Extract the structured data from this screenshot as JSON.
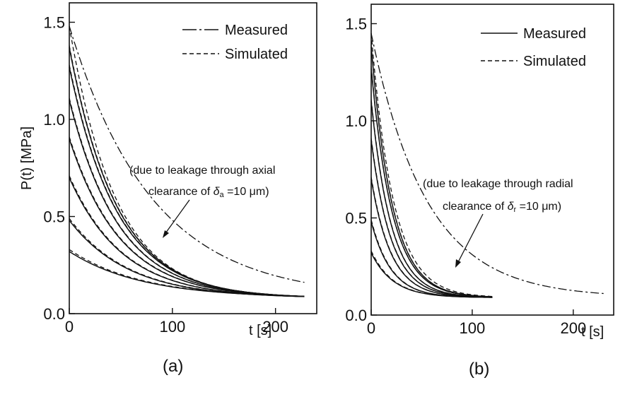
{
  "chart_data": [
    {
      "type": "line",
      "caption": "(a)",
      "xlabel": "t [s]",
      "ylabel": "P(t) [MPa]",
      "xlim": [
        0,
        240
      ],
      "ylim": [
        0,
        1.6
      ],
      "xticks": [
        "0",
        "100",
        "200"
      ],
      "xtick_values": [
        0,
        100,
        200
      ],
      "yticks": [
        "0.0",
        "0.5",
        "1.0",
        "1.5"
      ],
      "ytick_values": [
        0,
        0.5,
        1.0,
        1.5
      ],
      "legend_position": "top-right",
      "legend": [
        {
          "label": "Measured",
          "style": "solid"
        },
        {
          "label": "Simulated",
          "style": "dashed"
        }
      ],
      "annotation": {
        "line1": "(due to leakage through axial",
        "line2_prefix": "clearance of ",
        "symbol": "δ",
        "subscript": "a",
        "line2_suffix": " =10 μm)",
        "arrow_target": [
          90,
          0.43
        ]
      },
      "curve_model": {
        "x_end": 228,
        "floor": 0.08
      },
      "series": [
        {
          "name": "Measured",
          "style": "solid",
          "initial": [
            0.32,
            0.48,
            0.7,
            0.9,
            1.1,
            1.27,
            1.37
          ],
          "tau": [
            70,
            58,
            52,
            50,
            48,
            47,
            46
          ]
        },
        {
          "name": "Simulated",
          "style": "dashed",
          "initial": [
            0.33,
            0.49,
            0.71,
            0.91,
            1.11,
            1.28,
            1.38,
            1.48
          ],
          "tau": [
            70,
            58,
            52,
            50,
            48,
            47,
            46,
            45
          ]
        },
        {
          "name": "Simulated",
          "style": "dashdot",
          "initial": [
            1.48
          ],
          "tau": [
            80
          ]
        }
      ]
    },
    {
      "type": "line",
      "caption": "(b)",
      "xlabel": "t [s]",
      "ylabel": "",
      "xlim": [
        0,
        240
      ],
      "ylim": [
        0,
        1.6
      ],
      "xticks": [
        "0",
        "100",
        "200"
      ],
      "xtick_values": [
        0,
        100,
        200
      ],
      "yticks": [
        "0.0",
        "0.5",
        "1.0",
        "1.5"
      ],
      "ytick_values": [
        0,
        0.5,
        1.0,
        1.5
      ],
      "legend_position": "top-right",
      "legend": [
        {
          "label": "Measured",
          "style": "solid"
        },
        {
          "label": "Simulated",
          "style": "dashed"
        }
      ],
      "annotation": {
        "line1": "(due to leakage through radial",
        "line2_prefix": "clearance of ",
        "symbol": "δ",
        "subscript": "r",
        "line2_suffix": " =10 μm)",
        "arrow_target": [
          80,
          0.33
        ]
      },
      "curve_model": {
        "x_end": 120,
        "floor": 0.09
      },
      "series": [
        {
          "name": "Measured",
          "style": "solid",
          "initial": [
            0.32,
            0.48,
            0.7,
            0.9,
            1.1,
            1.27,
            1.38
          ],
          "tau": [
            22,
            20,
            20,
            20,
            20,
            21,
            21
          ]
        },
        {
          "name": "Simulated",
          "style": "dashed",
          "initial": [
            0.33,
            0.49,
            0.71,
            0.91,
            1.11,
            1.28,
            1.39,
            1.45
          ],
          "tau": [
            22,
            20,
            20,
            20,
            20,
            21,
            21,
            22
          ]
        },
        {
          "name": "Simulated",
          "style": "dashdot",
          "initial": [
            1.45
          ],
          "tau": [
            55
          ],
          "x_end": 230
        }
      ]
    }
  ]
}
